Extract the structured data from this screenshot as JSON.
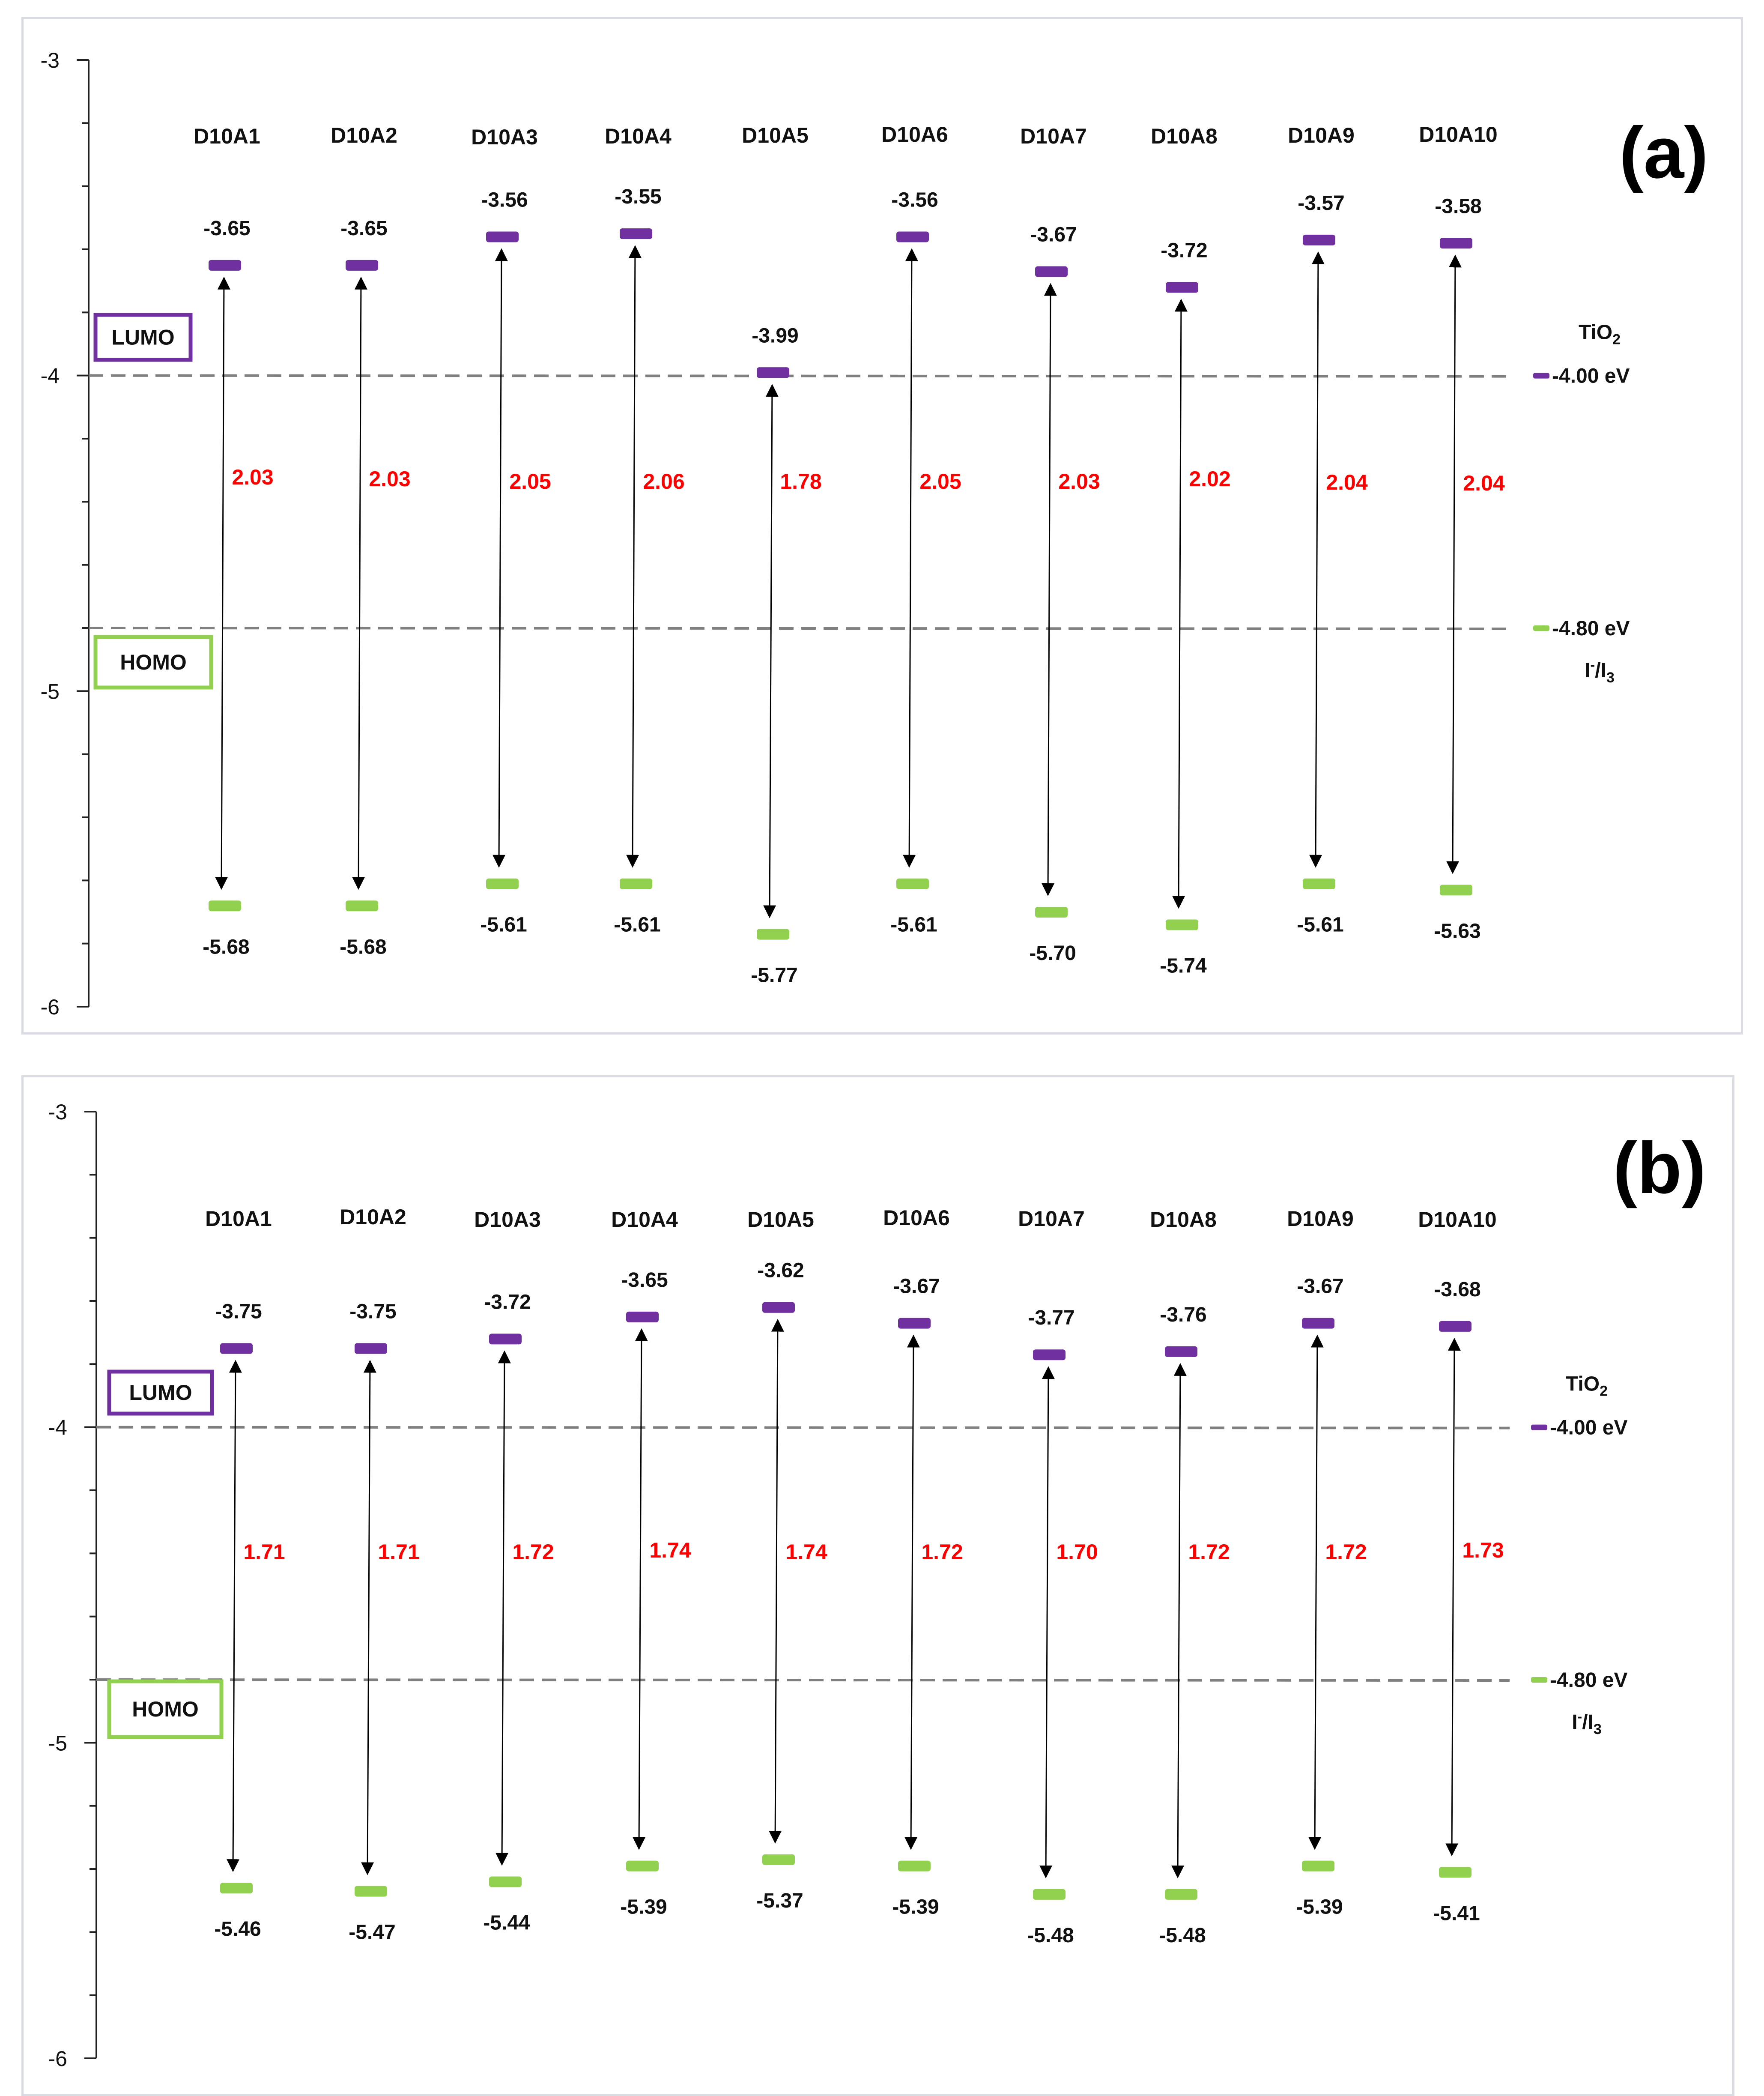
{
  "chart_data": [
    {
      "type": "energy-level-diagram",
      "panel_label": "(a)",
      "ylim": [
        -6,
        -3
      ],
      "y_ticks": [
        "-3",
        "-4",
        "-5",
        "-6"
      ],
      "molecules": [
        "D10A1",
        "D10A2",
        "D10A3",
        "D10A4",
        "D10A5",
        "D10A6",
        "D10A7",
        "D10A8",
        "D10A9",
        "D10A10"
      ],
      "lumo": [
        -3.65,
        -3.65,
        -3.56,
        -3.55,
        -3.99,
        -3.56,
        -3.67,
        -3.72,
        -3.57,
        -3.58
      ],
      "homo": [
        -5.68,
        -5.68,
        -5.61,
        -5.61,
        -5.77,
        -5.61,
        -5.7,
        -5.74,
        -5.61,
        -5.63
      ],
      "lumo_labels": [
        "-3.65",
        "-3.65",
        "-3.56",
        "-3.55",
        "-3.99",
        "-3.56",
        "-3.67",
        "-3.72",
        "-3.57",
        "-3.58"
      ],
      "homo_labels": [
        "-5.68",
        "-5.68",
        "-5.61",
        "-5.61",
        "-5.77",
        "-5.61",
        "-5.70",
        "-5.74",
        "-5.61",
        "-5.63"
      ],
      "gaps": [
        "2.03",
        "2.03",
        "2.05",
        "2.06",
        "1.78",
        "2.05",
        "2.03",
        "2.02",
        "2.04",
        "2.04"
      ],
      "legend_lumo": "LUMO",
      "legend_homo": "HOMO",
      "tio2": {
        "label": "TiO",
        "sub": "2",
        "value": -4.0,
        "value_label": "-4.00 eV"
      },
      "redox": {
        "value": -4.8,
        "value_label": "-4.80 eV",
        "I1": "I",
        "sup": "-",
        "slash": "/I",
        "sub": "3"
      },
      "colors": {
        "lumo": "#7030a0",
        "homo": "#92d050",
        "gap": "#ff0000",
        "dashed": "#808080"
      }
    },
    {
      "type": "energy-level-diagram",
      "panel_label": "(b)",
      "ylim": [
        -6,
        -3
      ],
      "y_ticks": [
        "-3",
        "-4",
        "-5",
        "-6"
      ],
      "molecules": [
        "D10A1",
        "D10A2",
        "D10A3",
        "D10A4",
        "D10A5",
        "D10A6",
        "D10A7",
        "D10A8",
        "D10A9",
        "D10A10"
      ],
      "lumo": [
        -3.75,
        -3.75,
        -3.72,
        -3.65,
        -3.62,
        -3.67,
        -3.77,
        -3.76,
        -3.67,
        -3.68
      ],
      "homo": [
        -5.46,
        -5.47,
        -5.44,
        -5.39,
        -5.37,
        -5.39,
        -5.48,
        -5.48,
        -5.39,
        -5.41
      ],
      "lumo_labels": [
        "-3.75",
        "-3.75",
        "-3.72",
        "-3.65",
        "-3.62",
        "-3.67",
        "-3.77",
        "-3.76",
        "-3.67",
        "-3.68"
      ],
      "homo_labels": [
        "-5.46",
        "-5.47",
        "-5.44",
        "-5.39",
        "-5.37",
        "-5.39",
        "-5.48",
        "-5.48",
        "-5.39",
        "-5.41"
      ],
      "gaps": [
        "1.71",
        "1.71",
        "1.72",
        "1.74",
        "1.74",
        "1.72",
        "1.70",
        "1.72",
        "1.72",
        "1.73"
      ],
      "legend_lumo": "LUMO",
      "legend_homo": "HOMO",
      "tio2": {
        "label": "TiO",
        "sub": "2",
        "value": -4.0,
        "value_label": "-4.00 eV"
      },
      "redox": {
        "value": -4.8,
        "value_label": "-4.80 eV",
        "I1": "I",
        "sup": "-",
        "slash": "/I",
        "sub": "3"
      },
      "colors": {
        "lumo": "#7030a0",
        "homo": "#92d050",
        "gap": "#ff0000",
        "dashed": "#808080"
      }
    }
  ]
}
